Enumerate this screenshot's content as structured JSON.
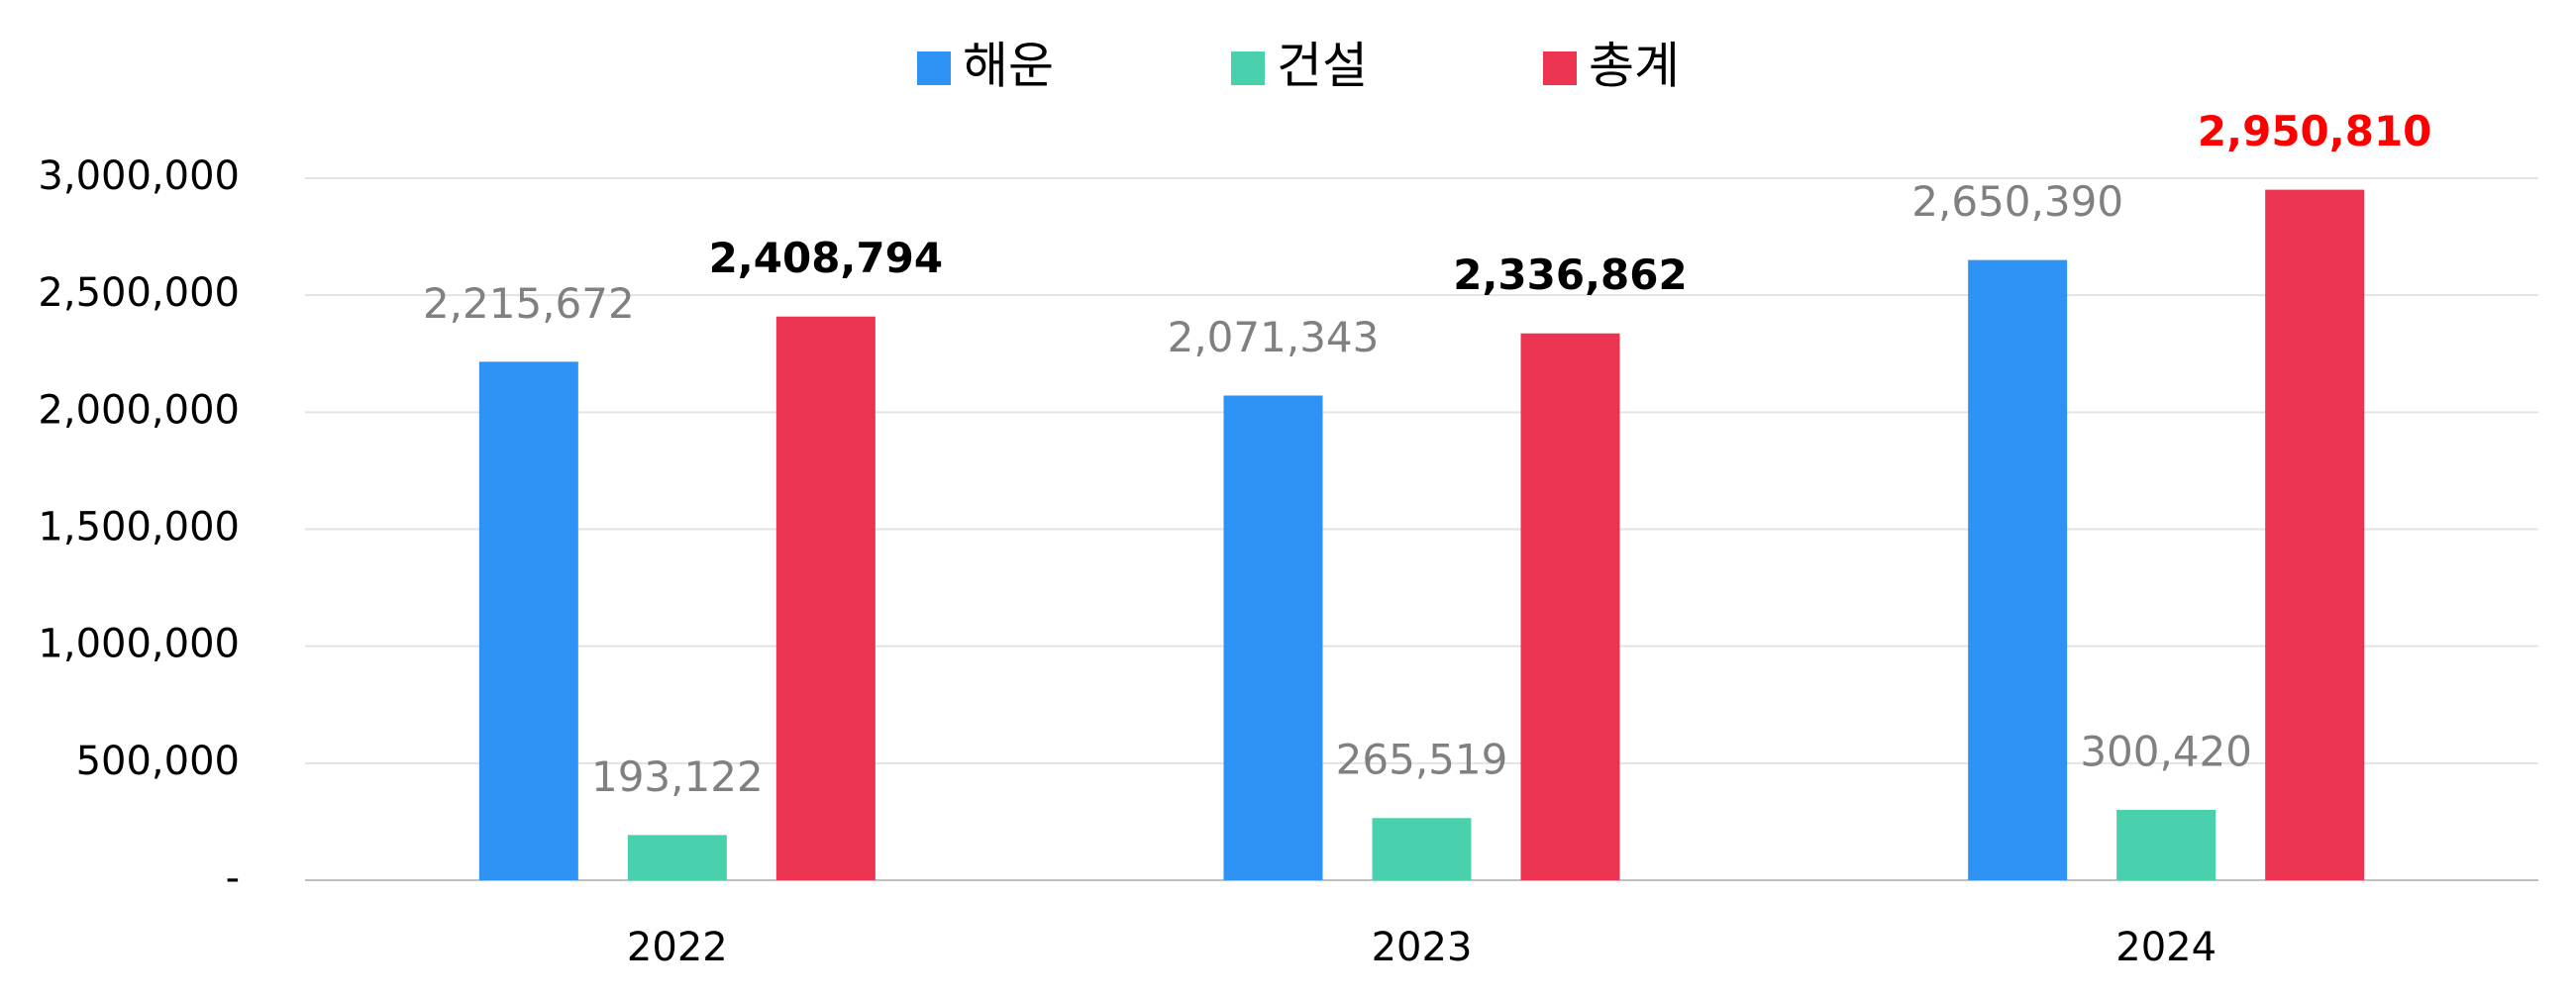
{
  "chart_data": {
    "type": "bar",
    "categories": [
      "2022",
      "2023",
      "2024"
    ],
    "series": [
      {
        "name": "해운",
        "color": "#2e93f5",
        "values": [
          2215672,
          2071343,
          2650390
        ],
        "value_labels": [
          "2,215,672",
          "2,071,343",
          "2,650,390"
        ],
        "label_color": "#808080"
      },
      {
        "name": "건설",
        "color": "#48d1ac",
        "values": [
          193122,
          265519,
          300420
        ],
        "value_labels": [
          "193,122",
          "265,519",
          "300,420"
        ],
        "label_color": "#808080"
      },
      {
        "name": "총계",
        "color": "#ec3450",
        "values": [
          2408794,
          2336862,
          2950810
        ],
        "value_labels": [
          "2,408,794",
          "2,336,862",
          "2,950,810"
        ],
        "value_label_colors": [
          "#000000",
          "#000000",
          "#ff0000"
        ],
        "label_bold": true
      }
    ],
    "ylim": [
      0,
      3000000
    ],
    "yticks": [
      {
        "value": 0,
        "label": "-"
      },
      {
        "value": 500000,
        "label": "500,000"
      },
      {
        "value": 1000000,
        "label": "1,000,000"
      },
      {
        "value": 1500000,
        "label": "1,500,000"
      },
      {
        "value": 2000000,
        "label": "2,000,000"
      },
      {
        "value": 2500000,
        "label": "2,500,000"
      },
      {
        "value": 3000000,
        "label": "3,000,000"
      }
    ],
    "grid": true,
    "legend": "top"
  }
}
